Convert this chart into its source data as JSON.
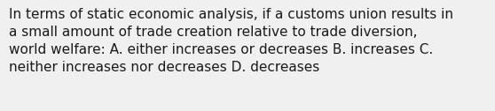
{
  "text": "In terms of static economic analysis, if a customs union results in\na small amount of trade creation relative to trade diversion,\nworld welfare: A. either increases or decreases B. increases C.\nneither increases nor decreases D. decreases",
  "background_color": "#f0f0f0",
  "text_color": "#1a1a1a",
  "font_size": 11.0,
  "fig_width": 5.58,
  "fig_height": 1.26,
  "dpi": 100
}
